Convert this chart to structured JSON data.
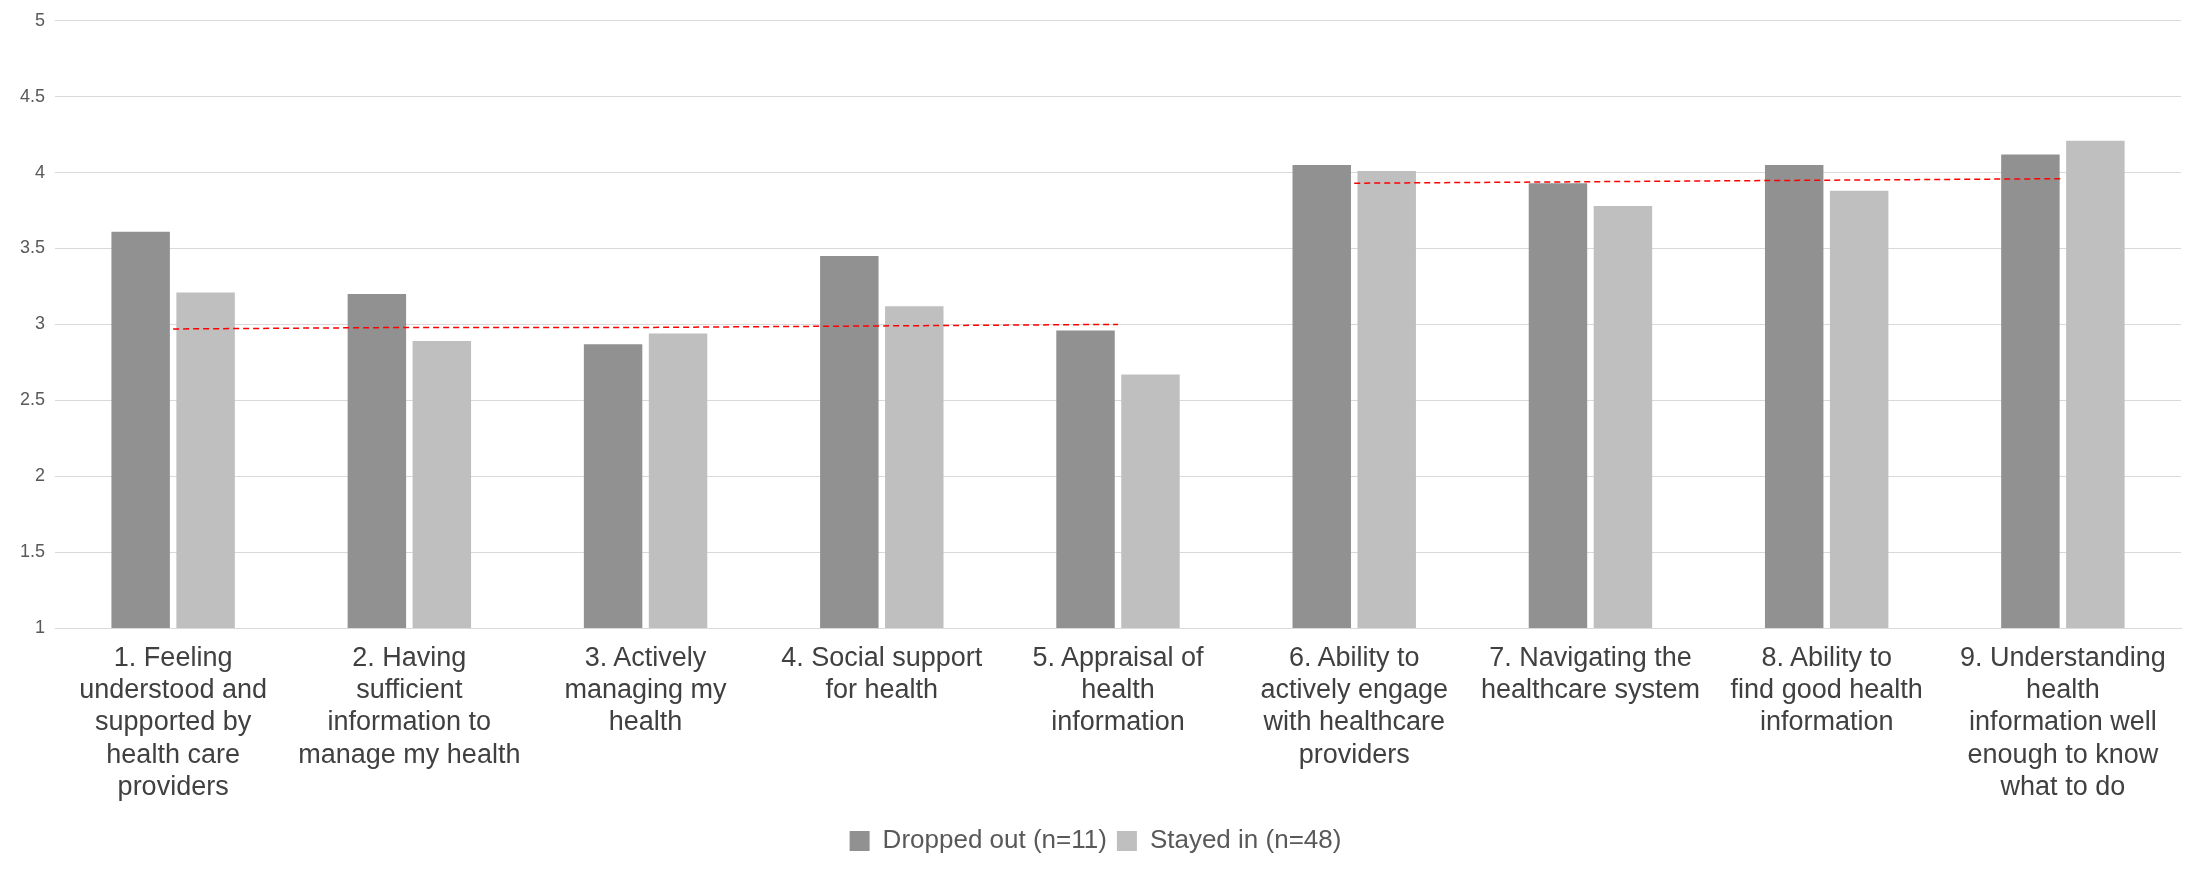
{
  "chart_data": {
    "type": "bar",
    "categories": [
      "1. Feeling understood and supported by health care providers",
      "2. Having sufficient information to manage my health",
      "3. Actively managing my health",
      "4. Social support for health",
      "5. Appraisal of health information",
      "6. Ability to actively engage with healthcare providers",
      "7. Navigating the healthcare system",
      "8. Ability to find good health information",
      "9. Understanding health information well enough to know what to do"
    ],
    "series": [
      {
        "name": "Dropped out (n=11)",
        "color": "#919191",
        "values": [
          3.61,
          3.2,
          2.87,
          3.45,
          2.96,
          4.05,
          3.93,
          4.05,
          4.12
        ]
      },
      {
        "name": "Stayed in (n=48)",
        "color": "#bfbfbf",
        "values": [
          3.21,
          2.89,
          2.94,
          3.12,
          2.67,
          4.01,
          3.78,
          3.88,
          4.21
        ]
      },
      {
        "type": "line",
        "color": "#ff0000",
        "line_style": "dashed",
        "marker": "none",
        "values": [
          2.97,
          2.98,
          2.98,
          2.99,
          3.0,
          null,
          null,
          null,
          null
        ]
      },
      {
        "type": "line",
        "color": "#ff0000",
        "line_style": "dashed",
        "marker": "none",
        "values": [
          null,
          null,
          null,
          null,
          null,
          3.93,
          3.94,
          3.95,
          3.96
        ]
      }
    ],
    "ylim": [
      1,
      5
    ],
    "yticks": [
      1,
      1.5,
      2,
      2.5,
      3,
      3.5,
      4,
      4.5,
      5
    ],
    "grid": "y",
    "legend": "bottom"
  }
}
